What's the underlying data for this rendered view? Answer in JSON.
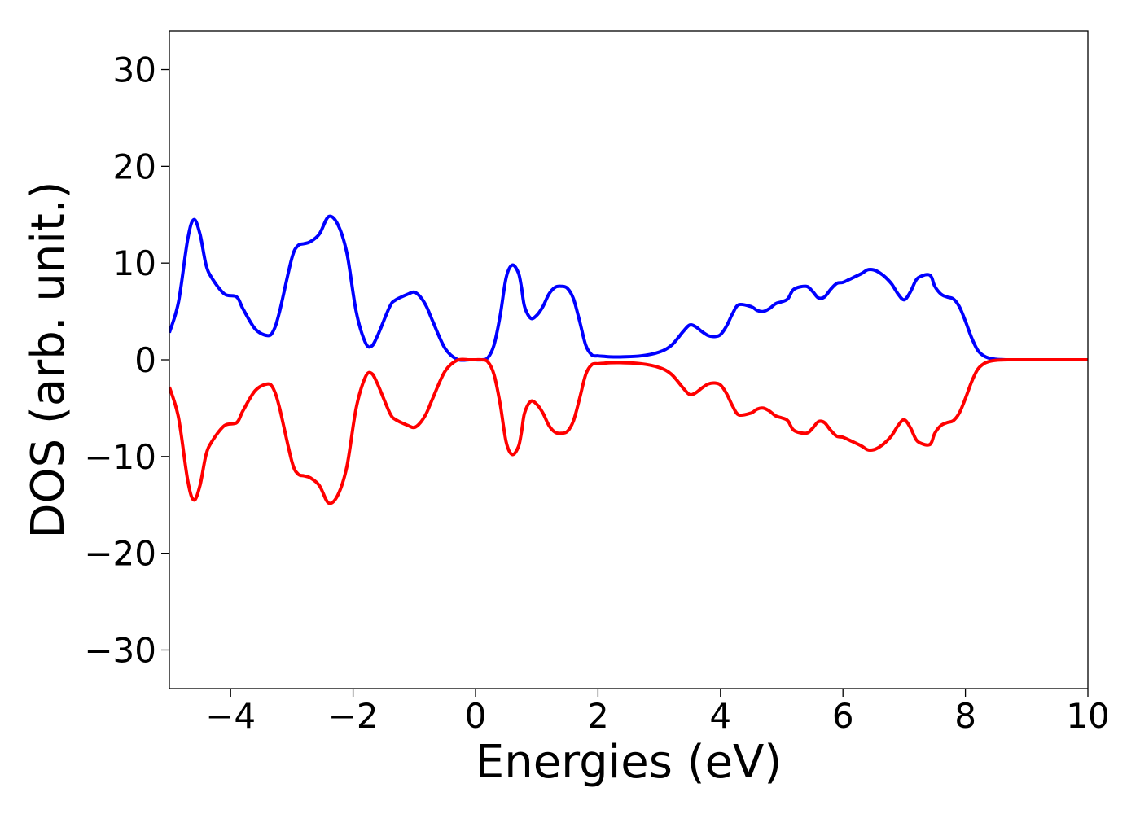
{
  "chart_data": {
    "type": "line",
    "title": "",
    "xlabel": "Energies (eV)",
    "ylabel": "DOS (arb. unit.)",
    "xlim": [
      -5,
      10
    ],
    "ylim": [
      -34,
      34
    ],
    "xticks": [
      -4,
      -2,
      0,
      2,
      4,
      6,
      8,
      10
    ],
    "xtick_labels": [
      "−4",
      "−2",
      "0",
      "2",
      "4",
      "6",
      "8",
      "10"
    ],
    "yticks": [
      30,
      20,
      10,
      0,
      -10,
      -20,
      -30
    ],
    "ytick_labels": [
      "30",
      "20",
      "10",
      "0",
      "−10",
      "−20",
      "−30"
    ],
    "grid": false,
    "legend": "none",
    "series": [
      {
        "color": "#0000ff",
        "x": [
          -5.0,
          -4.85,
          -4.7,
          -4.6,
          -4.5,
          -4.4,
          -4.3,
          -4.1,
          -3.9,
          -3.8,
          -3.6,
          -3.4,
          -3.3,
          -3.2,
          -3.0,
          -2.9,
          -2.8,
          -2.7,
          -2.55,
          -2.4,
          -2.25,
          -2.1,
          -1.95,
          -1.8,
          -1.7,
          -1.6,
          -1.4,
          -1.3,
          -1.1,
          -1.0,
          -0.9,
          -0.8,
          -0.7,
          -0.5,
          -0.3,
          -0.1,
          0.0,
          0.1,
          0.2,
          0.3,
          0.4,
          0.5,
          0.6,
          0.7,
          0.75,
          0.8,
          0.9,
          1.0,
          1.1,
          1.2,
          1.3,
          1.4,
          1.5,
          1.6,
          1.7,
          1.8,
          1.9,
          2.0,
          2.1,
          2.2,
          2.4,
          2.7,
          3.0,
          3.2,
          3.4,
          3.5,
          3.6,
          3.7,
          3.8,
          3.9,
          4.0,
          4.1,
          4.2,
          4.3,
          4.5,
          4.6,
          4.7,
          4.8,
          4.9,
          5.0,
          5.1,
          5.2,
          5.4,
          5.5,
          5.6,
          5.7,
          5.8,
          5.9,
          6.0,
          6.1,
          6.3,
          6.4,
          6.5,
          6.6,
          6.7,
          6.8,
          6.9,
          7.0,
          7.1,
          7.2,
          7.3,
          7.4,
          7.45,
          7.5,
          7.6,
          7.7,
          7.8,
          7.9,
          8.0,
          8.1,
          8.2,
          8.3,
          8.4,
          8.5,
          8.6,
          8.7,
          9.0,
          9.5,
          10.0
        ],
        "y": [
          2.8,
          6.0,
          12.5,
          14.5,
          13.0,
          9.8,
          8.4,
          6.8,
          6.5,
          5.3,
          3.2,
          2.5,
          3.0,
          5.0,
          10.5,
          11.8,
          12.0,
          12.2,
          13.0,
          14.8,
          14.0,
          11.0,
          5.0,
          1.8,
          1.4,
          2.5,
          5.5,
          6.2,
          6.8,
          7.0,
          6.5,
          5.5,
          4.0,
          1.2,
          0.05,
          0.0,
          0.0,
          0.0,
          0.2,
          1.5,
          4.5,
          8.5,
          9.8,
          9.0,
          7.5,
          5.5,
          4.3,
          4.6,
          5.5,
          6.8,
          7.5,
          7.6,
          7.4,
          6.3,
          4.0,
          1.5,
          0.5,
          0.4,
          0.35,
          0.3,
          0.3,
          0.4,
          0.8,
          1.5,
          3.0,
          3.6,
          3.4,
          2.9,
          2.5,
          2.4,
          2.6,
          3.5,
          4.8,
          5.7,
          5.5,
          5.1,
          5.0,
          5.3,
          5.8,
          6.0,
          6.3,
          7.3,
          7.6,
          7.1,
          6.4,
          6.5,
          7.3,
          7.9,
          8.0,
          8.3,
          8.9,
          9.3,
          9.3,
          9.0,
          8.5,
          7.8,
          6.8,
          6.2,
          7.0,
          8.3,
          8.7,
          8.8,
          8.5,
          7.6,
          6.8,
          6.5,
          6.3,
          5.5,
          4.0,
          2.3,
          1.0,
          0.4,
          0.15,
          0.05,
          0.02,
          0.0,
          0.0,
          0.0,
          0.0
        ],
        "mirror_series_color": "#ff0000"
      },
      {
        "color": "#ff0000",
        "x": [
          -5.0,
          -4.85,
          -4.7,
          -4.6,
          -4.5,
          -4.4,
          -4.3,
          -4.1,
          -3.9,
          -3.8,
          -3.6,
          -3.4,
          -3.3,
          -3.2,
          -3.0,
          -2.9,
          -2.8,
          -2.7,
          -2.55,
          -2.4,
          -2.25,
          -2.1,
          -1.95,
          -1.8,
          -1.7,
          -1.6,
          -1.4,
          -1.3,
          -1.1,
          -1.0,
          -0.9,
          -0.8,
          -0.7,
          -0.5,
          -0.3,
          -0.1,
          0.0,
          0.1,
          0.2,
          0.3,
          0.4,
          0.5,
          0.6,
          0.7,
          0.75,
          0.8,
          0.9,
          1.0,
          1.1,
          1.2,
          1.3,
          1.4,
          1.5,
          1.6,
          1.7,
          1.8,
          1.9,
          2.0,
          2.1,
          2.2,
          2.4,
          2.7,
          3.0,
          3.2,
          3.4,
          3.5,
          3.6,
          3.7,
          3.8,
          3.9,
          4.0,
          4.1,
          4.2,
          4.3,
          4.5,
          4.6,
          4.7,
          4.8,
          4.9,
          5.0,
          5.1,
          5.2,
          5.4,
          5.5,
          5.6,
          5.7,
          5.8,
          5.9,
          6.0,
          6.1,
          6.3,
          6.4,
          6.5,
          6.6,
          6.7,
          6.8,
          6.9,
          7.0,
          7.1,
          7.2,
          7.3,
          7.4,
          7.45,
          7.5,
          7.6,
          7.7,
          7.8,
          7.9,
          8.0,
          8.1,
          8.2,
          8.3,
          8.4,
          8.5,
          8.6,
          8.7,
          9.0,
          9.5,
          10.0
        ],
        "y": [
          -2.8,
          -6.0,
          -12.5,
          -14.5,
          -13.0,
          -9.8,
          -8.4,
          -6.8,
          -6.5,
          -5.3,
          -3.2,
          -2.5,
          -3.0,
          -5.0,
          -10.5,
          -11.8,
          -12.0,
          -12.2,
          -13.0,
          -14.8,
          -14.0,
          -11.0,
          -5.0,
          -1.8,
          -1.4,
          -2.5,
          -5.5,
          -6.2,
          -6.8,
          -7.0,
          -6.5,
          -5.5,
          -4.0,
          -1.2,
          -0.05,
          0.0,
          0.0,
          0.0,
          -0.2,
          -1.5,
          -4.5,
          -8.5,
          -9.8,
          -9.0,
          -7.5,
          -5.5,
          -4.3,
          -4.6,
          -5.5,
          -6.8,
          -7.5,
          -7.6,
          -7.4,
          -6.3,
          -4.0,
          -1.5,
          -0.5,
          -0.4,
          -0.35,
          -0.3,
          -0.3,
          -0.4,
          -0.8,
          -1.5,
          -3.0,
          -3.6,
          -3.4,
          -2.9,
          -2.5,
          -2.4,
          -2.6,
          -3.5,
          -4.8,
          -5.7,
          -5.5,
          -5.1,
          -5.0,
          -5.3,
          -5.8,
          -6.0,
          -6.3,
          -7.3,
          -7.6,
          -7.1,
          -6.4,
          -6.5,
          -7.3,
          -7.9,
          -8.0,
          -8.3,
          -8.9,
          -9.3,
          -9.3,
          -9.0,
          -8.5,
          -7.8,
          -6.8,
          -6.2,
          -7.0,
          -8.3,
          -8.7,
          -8.8,
          -8.5,
          -7.6,
          -6.8,
          -6.5,
          -6.3,
          -5.5,
          -4.0,
          -2.3,
          -1.0,
          -0.4,
          -0.15,
          -0.05,
          -0.02,
          0.0,
          0.0,
          0.0,
          0.0
        ]
      }
    ]
  }
}
